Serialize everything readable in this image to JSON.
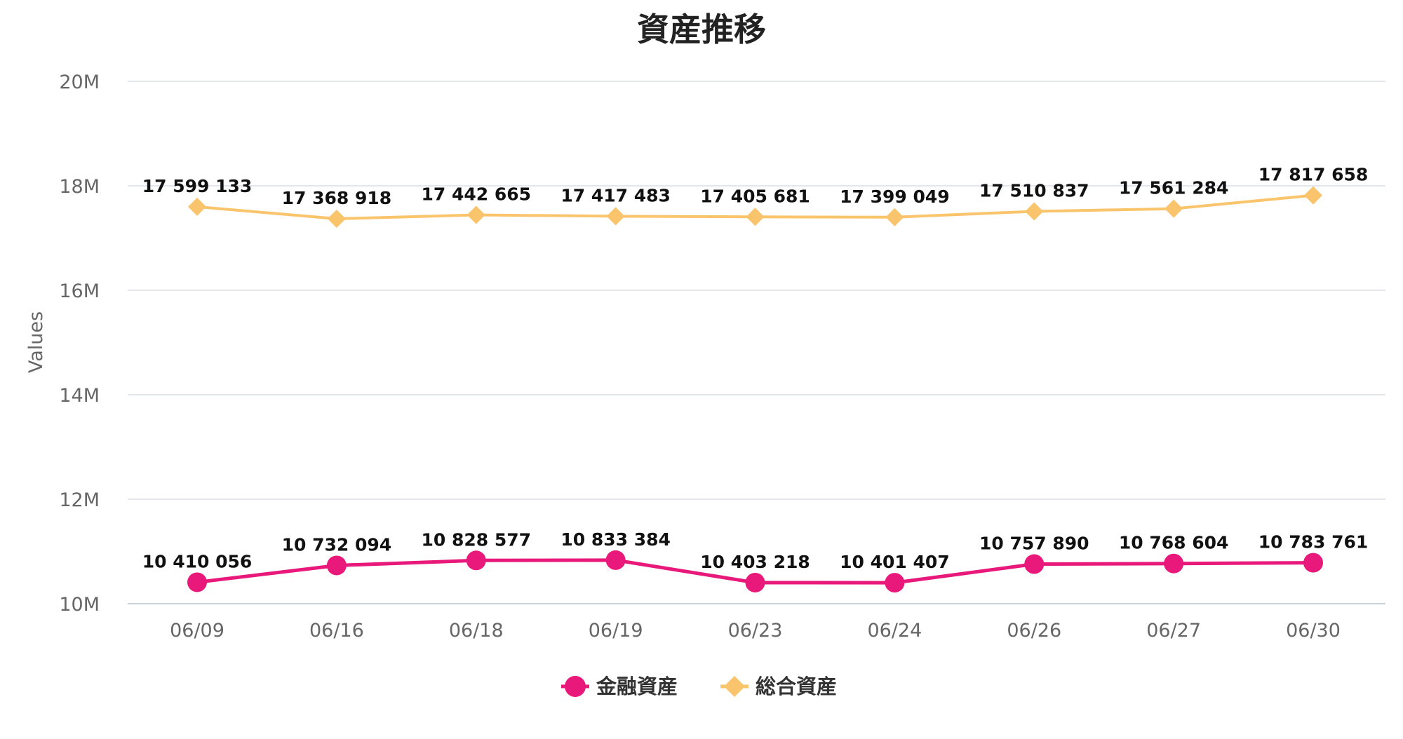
{
  "chart_data": {
    "type": "line",
    "title": "資産推移",
    "xlabel": "",
    "ylabel": "Values",
    "categories": [
      "06/09",
      "06/16",
      "06/18",
      "06/19",
      "06/23",
      "06/24",
      "06/26",
      "06/27",
      "06/30"
    ],
    "ylim": [
      10000000,
      20000000
    ],
    "yticks": [
      {
        "value": 10000000,
        "label": "10M"
      },
      {
        "value": 12000000,
        "label": "12M"
      },
      {
        "value": 14000000,
        "label": "14M"
      },
      {
        "value": 16000000,
        "label": "16M"
      },
      {
        "value": 18000000,
        "label": "18M"
      },
      {
        "value": 20000000,
        "label": "20M"
      }
    ],
    "grid": true,
    "legend_position": "bottom-center",
    "series": [
      {
        "name": "金融資産",
        "marker": "circle",
        "color": "#e8197a",
        "values": [
          10410056,
          10732094,
          10828577,
          10833384,
          10403218,
          10401407,
          10757890,
          10768604,
          10783761
        ],
        "labels": [
          "10 410 056",
          "10 732 094",
          "10 828 577",
          "10 833 384",
          "10 403 218",
          "10 401 407",
          "10 757 890",
          "10 768 604",
          "10 783 761"
        ]
      },
      {
        "name": "総合資産",
        "marker": "diamond",
        "color": "#f9c46b",
        "values": [
          17599133,
          17368918,
          17442665,
          17417483,
          17405681,
          17399049,
          17510837,
          17561284,
          17817658
        ],
        "labels": [
          "17 599 133",
          "17 368 918",
          "17 442 665",
          "17 417 483",
          "17 405 681",
          "17 399 049",
          "17 510 837",
          "17 561 284",
          "17 817 658"
        ]
      }
    ]
  }
}
